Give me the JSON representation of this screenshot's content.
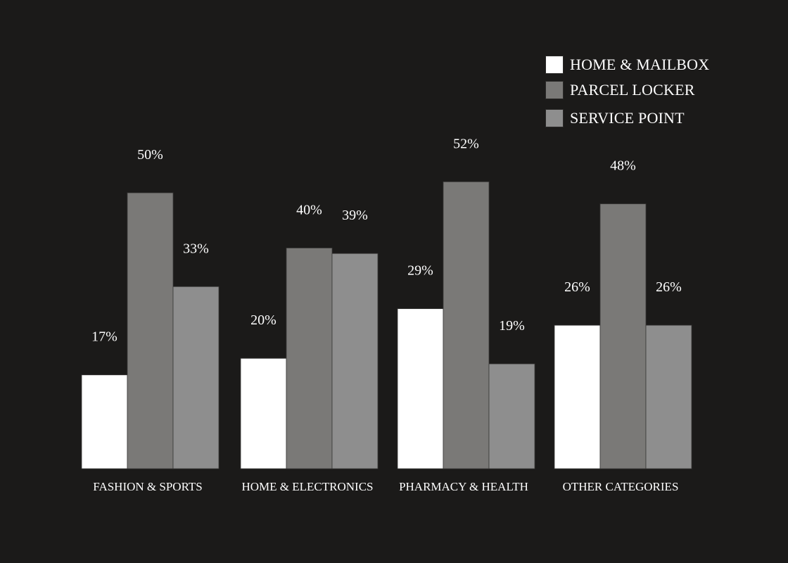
{
  "chart_data": {
    "type": "bar",
    "categories": [
      "FASHION & SPORTS",
      "HOME & ELECTRONICS",
      "PHARMACY & HEALTH",
      "OTHER CATEGORIES"
    ],
    "series": [
      {
        "name": "HOME & MAILBOX",
        "values": [
          17,
          20,
          29,
          26
        ],
        "labels": [
          "17%",
          "20%",
          "29%",
          "26%"
        ],
        "color": "#ffffff"
      },
      {
        "name": "PARCEL LOCKER",
        "values": [
          50,
          40,
          52,
          48
        ],
        "labels": [
          "50%",
          "40%",
          "52%",
          "48%"
        ],
        "color": "#7a7977"
      },
      {
        "name": "SERVICE POINT",
        "values": [
          33,
          39,
          19,
          26
        ],
        "labels": [
          "33%",
          "39%",
          "19%",
          "26%"
        ],
        "color": "#8e8e8e"
      }
    ],
    "unit": "%",
    "ylim": [
      0,
      60
    ],
    "grid": false,
    "legend_position": "top-right",
    "background": "#1b1a19",
    "text_color": "#ffffff"
  }
}
